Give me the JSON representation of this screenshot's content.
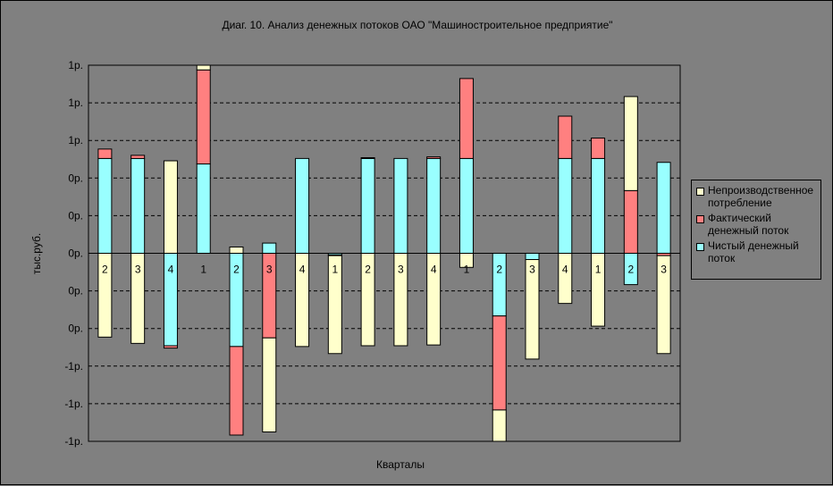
{
  "chart_data": {
    "type": "bar",
    "title": "Диаг. 10. Анализ денежных потоков ОАО \"Машиностроительное предприятие\"",
    "xlabel": "Кварталы",
    "ylabel": "тыс.руб.",
    "ylim": [
      -1.2,
      1.2
    ],
    "y_ticks": [
      1.2,
      0.96,
      0.72,
      0.48,
      0.24,
      0,
      -0.24,
      -0.48,
      -0.72,
      -0.96,
      -1.2
    ],
    "y_tick_labels": [
      "1р.",
      "1р.",
      "1р.",
      "0р.",
      "0р.",
      "0р.",
      "0р.",
      "0р.",
      "-1р.",
      "-1р.",
      "-1р."
    ],
    "grid": true,
    "legend_position": "right",
    "stacked": true,
    "categories": [
      "2",
      "3",
      "4",
      "1",
      "2",
      "3",
      "4",
      "1",
      "2",
      "3",
      "4",
      "1",
      "2",
      "3",
      "4",
      "1",
      "2",
      "3"
    ],
    "series": [
      {
        "name": "Чистый денежный поток",
        "color": "#99FFFF",
        "values": [
          0.605,
          0.605,
          -0.59,
          0.57,
          -0.595,
          0.065,
          0.605,
          -0.01,
          0.605,
          0.605,
          0.605,
          0.605,
          -0.4,
          -0.04,
          0.605,
          0.605,
          -0.2,
          0.58
        ]
      },
      {
        "name": "Фактический денежный поток",
        "color": "#FF8080",
        "values": [
          0.06,
          0.02,
          -0.015,
          0.6,
          -0.565,
          -0.54,
          0.0,
          -0.005,
          0.005,
          0.0,
          0.01,
          0.51,
          -0.6,
          0.0,
          0.27,
          0.13,
          0.4,
          -0.015
        ]
      },
      {
        "name": "Непроизводственное потребление",
        "color": "#FFFFCC",
        "values": [
          -0.535,
          -0.575,
          0.59,
          0.03,
          0.04,
          -0.6,
          -0.595,
          -0.625,
          -0.59,
          -0.59,
          -0.585,
          -0.09,
          -0.2,
          -0.635,
          -0.32,
          -0.465,
          0.6,
          -0.625
        ]
      }
    ]
  }
}
